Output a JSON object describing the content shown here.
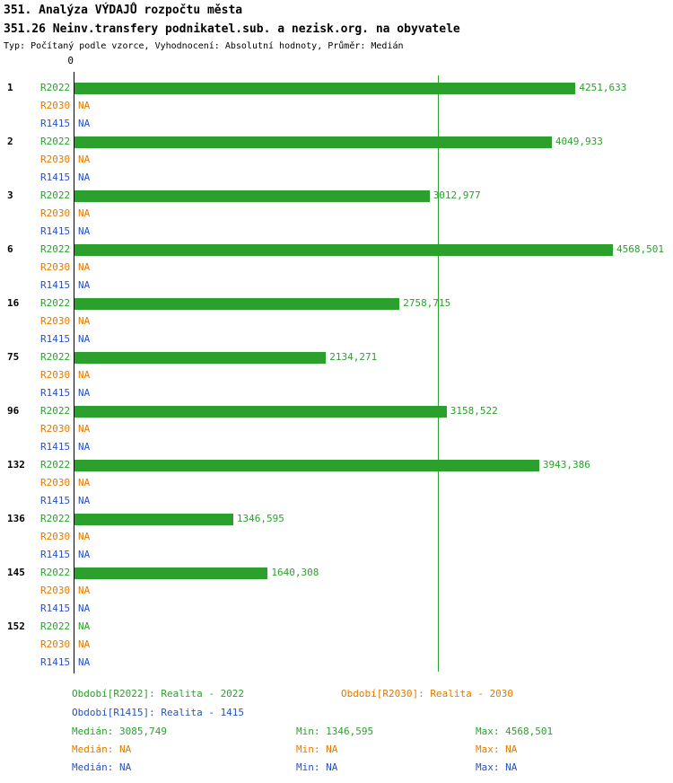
{
  "header": {
    "title1": "351. Analýza VÝDAJŮ rozpočtu města",
    "title2": "351.26 Neinv.transfery podnikatel.sub. a nezisk.org. na obyvatele",
    "subtitle": "Typ: Počítaný podle vzorce, Vyhodnocení: Absolutní hodnoty, Průměr: Medián"
  },
  "axis": {
    "zero_label": "0"
  },
  "series": {
    "r2022": "R2022",
    "r2030": "R2030",
    "r1415": "R1415"
  },
  "colors": {
    "green": "#2CA02C",
    "orange": "#E07B00",
    "blue": "#2A52BE"
  },
  "chart_data": {
    "type": "bar",
    "orientation": "horizontal",
    "x_start": 0,
    "x_max": 4568.501,
    "median_line_value": 3085.749,
    "series_order": [
      "R2022",
      "R2030",
      "R1415"
    ],
    "rows": [
      {
        "rank": "1",
        "r2022_value": 4251.633,
        "r2022_label": "4251,633",
        "r2030_label": "NA",
        "r1415_label": "NA"
      },
      {
        "rank": "2",
        "r2022_value": 4049.933,
        "r2022_label": "4049,933",
        "r2030_label": "NA",
        "r1415_label": "NA"
      },
      {
        "rank": "3",
        "r2022_value": 3012.977,
        "r2022_label": "3012,977",
        "r2030_label": "NA",
        "r1415_label": "NA"
      },
      {
        "rank": "6",
        "r2022_value": 4568.501,
        "r2022_label": "4568,501",
        "r2030_label": "NA",
        "r1415_label": "NA"
      },
      {
        "rank": "16",
        "r2022_value": 2758.715,
        "r2022_label": "2758,715",
        "r2030_label": "NA",
        "r1415_label": "NA"
      },
      {
        "rank": "75",
        "r2022_value": 2134.271,
        "r2022_label": "2134,271",
        "r2030_label": "NA",
        "r1415_label": "NA"
      },
      {
        "rank": "96",
        "r2022_value": 3158.522,
        "r2022_label": "3158,522",
        "r2030_label": "NA",
        "r1415_label": "NA"
      },
      {
        "rank": "132",
        "r2022_value": 3943.386,
        "r2022_label": "3943,386",
        "r2030_label": "NA",
        "r1415_label": "NA"
      },
      {
        "rank": "136",
        "r2022_value": 1346.595,
        "r2022_label": "1346,595",
        "r2030_label": "NA",
        "r1415_label": "NA"
      },
      {
        "rank": "145",
        "r2022_value": 1640.308,
        "r2022_label": "1640,308",
        "r2030_label": "NA",
        "r1415_label": "NA"
      },
      {
        "rank": "152",
        "r2022_value": null,
        "r2022_label": "NA",
        "r2030_label": "NA",
        "r1415_label": "NA"
      }
    ]
  },
  "legend": {
    "r2022": "Období[R2022]: Realita - 2022",
    "r2030": "Období[R2030]: Realita - 2030",
    "r1415": "Období[R1415]: Realita - 1415"
  },
  "stats": {
    "r2022": {
      "median": "Medián: 3085,749",
      "min": "Min: 1346,595",
      "max": "Max: 4568,501"
    },
    "r2030": {
      "median": "Medián: NA",
      "min": "Min: NA",
      "max": "Max: NA"
    },
    "r1415": {
      "median": "Medián: NA",
      "min": "Min: NA",
      "max": "Max: NA"
    }
  }
}
